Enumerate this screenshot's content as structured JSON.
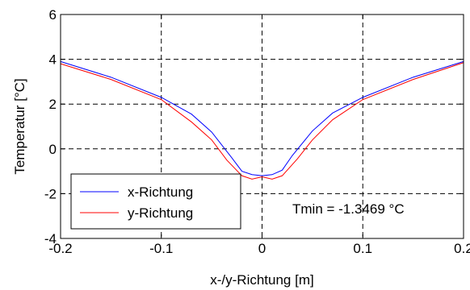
{
  "chart_data": {
    "type": "line",
    "xlabel": "x-/y-Richtung [m]",
    "ylabel": "Temperatur [°C]",
    "xlim": [
      -0.2,
      0.2
    ],
    "ylim": [
      -4,
      6
    ],
    "xticks": [
      -0.2,
      -0.1,
      0,
      0.1,
      0.2
    ],
    "xtick_labels": [
      "-0.2",
      "-0.1",
      "0",
      "0.1",
      "0.2"
    ],
    "yticks": [
      -4,
      -2,
      0,
      2,
      4,
      6
    ],
    "ytick_labels": [
      "-4",
      "-2",
      "0",
      "2",
      "4",
      "6"
    ],
    "grid": true,
    "grid_style": "dashed",
    "legend_position": "bottom-left",
    "series": [
      {
        "name": "x-Richtung",
        "color": "#0000ff",
        "x": [
          -0.2,
          -0.15,
          -0.1,
          -0.07,
          -0.05,
          -0.03,
          -0.02,
          -0.01,
          0,
          0.01,
          0.02,
          0.03,
          0.05,
          0.07,
          0.1,
          0.15,
          0.2
        ],
        "y": [
          3.9,
          3.2,
          2.3,
          1.55,
          0.75,
          -0.4,
          -1.0,
          -1.15,
          -1.2,
          -1.15,
          -0.95,
          -0.3,
          0.8,
          1.6,
          2.3,
          3.2,
          3.9
        ]
      },
      {
        "name": "y-Richtung",
        "color": "#ff0000",
        "x": [
          -0.2,
          -0.15,
          -0.1,
          -0.07,
          -0.05,
          -0.035,
          -0.02,
          -0.01,
          0,
          0.01,
          0.02,
          0.035,
          0.05,
          0.07,
          0.1,
          0.15,
          0.2
        ],
        "y": [
          3.8,
          3.1,
          2.2,
          1.2,
          0.4,
          -0.5,
          -1.2,
          -1.35,
          -1.25,
          -1.35,
          -1.2,
          -0.45,
          0.4,
          1.3,
          2.2,
          3.1,
          3.85
        ]
      }
    ],
    "annotations": [
      {
        "text": "Tmin = -1.3469 °C"
      }
    ]
  }
}
